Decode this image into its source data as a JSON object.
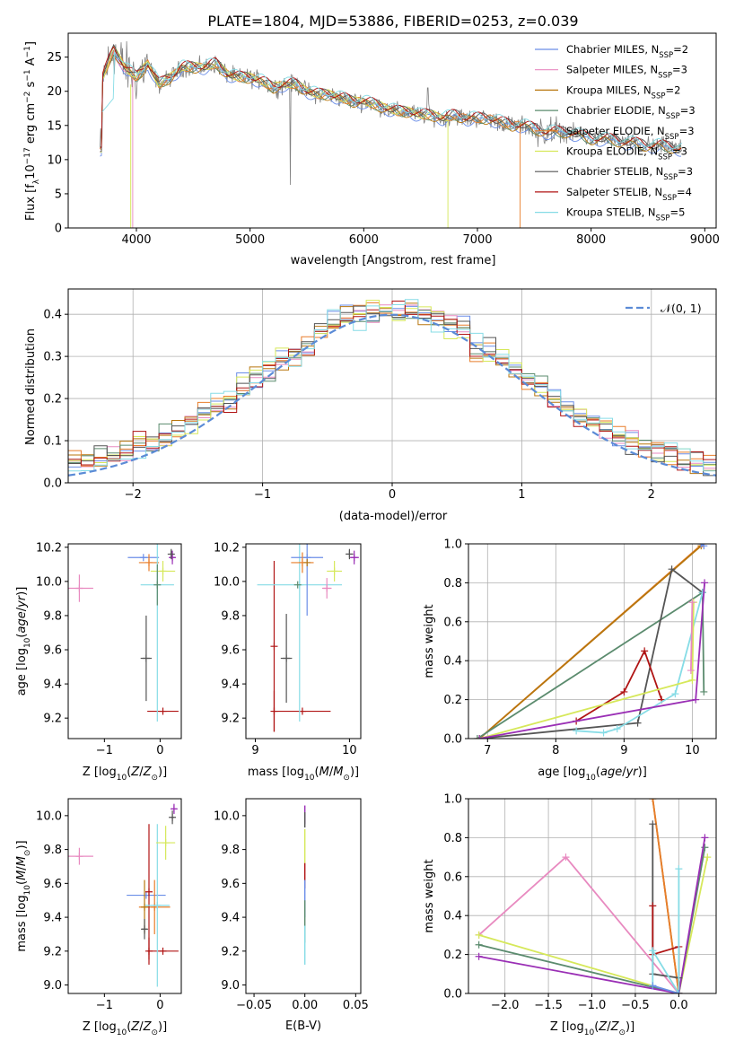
{
  "figure": {
    "title": "PLATE=1804, MJD=53886, FIBERID=0253, z=0.039",
    "colors": {
      "Chabrier MILES": "#6b8ee8",
      "Salpeter MILES": "#e88ac0",
      "Kroupa MILES": "#b8760e",
      "Chabrier ELODIE": "#5b8b6e",
      "Salpeter ELODIE": "#e87d2a",
      "Kroupa ELODIE": "#d6e85a",
      "Chabrier STELIB": "#555555",
      "Salpeter STELIB": "#b01414",
      "Kroupa STELIB": "#86dce6",
      "extra": "#9a2fb5",
      "data": "#808080",
      "gauss": "#5b8bd6"
    }
  },
  "chart_data": [
    {
      "panel": "spectrum",
      "type": "line",
      "xlabel": "wavelength [Angstrom, rest frame]",
      "ylabel_parts": [
        "Flux [f",
        "λ",
        "10",
        "−17",
        " erg cm",
        "−2",
        " s",
        "−1",
        " A",
        "−1",
        "]"
      ],
      "xlim": [
        3400,
        9100
      ],
      "ylim": [
        0,
        28.5
      ],
      "xticks": [
        4000,
        5000,
        6000,
        7000,
        8000,
        9000
      ],
      "yticks": [
        0,
        5,
        10,
        15,
        20,
        25
      ],
      "grid": false,
      "legend_position": "top-right",
      "legend": [
        {
          "name": "Chabrier MILES",
          "sub": "SSP",
          "n": "=2"
        },
        {
          "name": "Salpeter MILES",
          "sub": "SSP",
          "n": "=3"
        },
        {
          "name": "Kroupa MILES",
          "sub": "SSP",
          "n": "=2"
        },
        {
          "name": "Chabrier ELODIE",
          "sub": "SSP",
          "n": "=3"
        },
        {
          "name": "Salpeter ELODIE",
          "sub": "SSP",
          "n": "=3"
        },
        {
          "name": "Kroupa ELODIE",
          "sub": "SSP",
          "n": "=3"
        },
        {
          "name": "Chabrier STELIB",
          "sub": "SSP",
          "n": "=3"
        },
        {
          "name": "Salpeter STELIB",
          "sub": "SSP",
          "n": "=4"
        },
        {
          "name": "Kroupa STELIB",
          "sub": "SSP",
          "n": "=5"
        }
      ],
      "model_envelope": [
        [
          3700,
          22
        ],
        [
          3800,
          26
        ],
        [
          3900,
          23.5
        ],
        [
          4000,
          22
        ],
        [
          4100,
          24
        ],
        [
          4200,
          21
        ],
        [
          4300,
          22
        ],
        [
          4400,
          23.5
        ],
        [
          4500,
          23.5
        ],
        [
          4600,
          23.5
        ],
        [
          4700,
          24
        ],
        [
          4800,
          22.5
        ],
        [
          4900,
          22
        ],
        [
          5000,
          22
        ],
        [
          5100,
          21.5
        ],
        [
          5200,
          20.5
        ],
        [
          5300,
          21
        ],
        [
          5400,
          21
        ],
        [
          5500,
          20
        ],
        [
          5600,
          19.5
        ],
        [
          5700,
          19.5
        ],
        [
          5800,
          19
        ],
        [
          5900,
          18.5
        ],
        [
          6000,
          18.5
        ],
        [
          6100,
          18
        ],
        [
          6200,
          17.5
        ],
        [
          6300,
          17
        ],
        [
          6400,
          17
        ],
        [
          6500,
          16.5
        ],
        [
          6600,
          16.5
        ],
        [
          6700,
          16
        ],
        [
          6800,
          16.5
        ],
        [
          6900,
          16
        ],
        [
          7000,
          16
        ],
        [
          7100,
          16
        ],
        [
          7200,
          15.5
        ],
        [
          7300,
          15
        ],
        [
          7400,
          15
        ],
        [
          7500,
          14.5
        ],
        [
          7600,
          14
        ],
        [
          7700,
          14
        ],
        [
          7800,
          14
        ],
        [
          7900,
          13.5
        ],
        [
          8000,
          13
        ],
        [
          8100,
          13
        ],
        [
          8200,
          12.8
        ],
        [
          8300,
          12.5
        ],
        [
          8400,
          12.3
        ],
        [
          8500,
          12
        ],
        [
          8600,
          12
        ],
        [
          8700,
          11.8
        ],
        [
          8800,
          11.5
        ]
      ],
      "cutoffs": [
        {
          "series": "Salpeter MILES",
          "from": 3960
        },
        {
          "series": "Kroupa ELODIE",
          "from": 3950
        },
        {
          "series": "Kroupa ELODIE",
          "from": 6740
        },
        {
          "series": "Salpeter ELODIE",
          "from": 7370
        }
      ]
    },
    {
      "panel": "residuals",
      "type": "line",
      "xlabel": "(data-model)/error",
      "ylabel": "Normed distribution",
      "xlim": [
        -2.5,
        2.5
      ],
      "ylim": [
        0,
        0.46
      ],
      "xticks": [
        -2,
        -1,
        0,
        1,
        2
      ],
      "yticks": [
        0.0,
        0.1,
        0.2,
        0.3,
        0.4
      ],
      "grid": true,
      "legend_position": "top-right",
      "gauss_label": "𝒩(0, 1)",
      "bin_width": 0.1
    },
    {
      "panel": "Z-age",
      "type": "scatter",
      "xlabel": "Z [log10(Z/Z⊙)]",
      "ylabel": "age [log10(age/yr)]",
      "xlim": [
        -1.65,
        0.38
      ],
      "ylim": [
        9.08,
        10.22
      ],
      "xticks": [
        -1,
        0
      ],
      "yticks": [
        9.2,
        9.4,
        9.6,
        9.8,
        10.0,
        10.2
      ],
      "points": [
        {
          "s": "Salpeter MILES",
          "x": -1.45,
          "y": 9.96,
          "xerr": 0.25,
          "yerr": 0.08
        },
        {
          "s": "Chabrier MILES",
          "x": -0.3,
          "y": 10.14,
          "xerr": 0.28,
          "yerr": 0.0
        },
        {
          "s": "Salpeter ELODIE",
          "x": -0.2,
          "y": 10.11,
          "xerr": 0.18,
          "yerr": 0.05
        },
        {
          "s": "Chabrier STELIB",
          "x": -0.25,
          "y": 9.55,
          "xerr": 0.1,
          "yerr": 0.25
        },
        {
          "s": "Salpeter STELIB",
          "x": 0.05,
          "y": 9.24,
          "xerr": 0.28,
          "yerr": 0.0
        },
        {
          "s": "Kroupa ELODIE",
          "x": 0.05,
          "y": 10.06,
          "xerr": 0.22,
          "yerr": 0.06
        },
        {
          "s": "Kroupa STELIB",
          "x": -0.05,
          "y": 9.98,
          "xerr": 0.3,
          "yerr": 0.8
        },
        {
          "s": "Chabrier ELODIE",
          "x": -0.05,
          "y": 9.98,
          "xerr": 0.0,
          "yerr": 0.12
        },
        {
          "s": "extra",
          "x": 0.22,
          "y": 10.14,
          "xerr": 0.05,
          "yerr": 0.04
        },
        {
          "s": "Chabrier STELIB",
          "x": 0.2,
          "y": 10.16,
          "xerr": 0.03,
          "yerr": 0.03
        }
      ]
    },
    {
      "panel": "mass-age",
      "type": "scatter",
      "xlabel": "mass [log10(M/M⊙)]",
      "ylabel": "",
      "xlim": [
        8.9,
        10.12
      ],
      "ylim": [
        9.08,
        10.22
      ],
      "xticks": [
        9,
        10
      ],
      "yticks": [
        9.2,
        9.4,
        9.6,
        9.8,
        10.0,
        10.2
      ],
      "points": [
        {
          "s": "Salpeter STELIB",
          "x": 9.2,
          "y": 9.24,
          "xerr": 0.0,
          "yerr": 0.12
        },
        {
          "s": "Salpeter STELIB",
          "x": 9.5,
          "y": 9.24,
          "xerr": 0.3,
          "yerr": 0.0
        },
        {
          "s": "Salpeter STELIB",
          "x": 9.2,
          "y": 9.62,
          "xerr": 0.0,
          "yerr": 0.5
        },
        {
          "s": "Kroupa STELIB",
          "x": 9.47,
          "y": 9.98,
          "xerr": 0.45,
          "yerr": 0.8
        },
        {
          "s": "Chabrier STELIB",
          "x": 9.33,
          "y": 9.55,
          "xerr": 0.06,
          "yerr": 0.26
        },
        {
          "s": "Chabrier MILES",
          "x": 9.55,
          "y": 10.14,
          "xerr": 0.17,
          "yerr": 0.34
        },
        {
          "s": "Salpeter ELODIE",
          "x": 9.5,
          "y": 10.11,
          "xerr": 0.12,
          "yerr": 0.06
        },
        {
          "s": "Kroupa MILES",
          "x": 9.55,
          "y": 10.11,
          "xerr": 0.0,
          "yerr": 0.0
        },
        {
          "s": "Salpeter MILES",
          "x": 9.76,
          "y": 9.96,
          "xerr": 0.05,
          "yerr": 0.06
        },
        {
          "s": "Kroupa ELODIE",
          "x": 9.84,
          "y": 10.06,
          "xerr": 0.08,
          "yerr": 0.06
        },
        {
          "s": "Chabrier ELODIE",
          "x": 9.45,
          "y": 9.98,
          "xerr": 0.0,
          "yerr": 0.0
        },
        {
          "s": "extra",
          "x": 10.05,
          "y": 10.14,
          "xerr": 0.05,
          "yerr": 0.04
        },
        {
          "s": "Chabrier STELIB",
          "x": 10.0,
          "y": 10.16,
          "xerr": 0.04,
          "yerr": 0.03
        }
      ]
    },
    {
      "panel": "age-weight",
      "type": "line",
      "xlabel": "age [log10(age/yr)]",
      "ylabel": "mass weight",
      "xlim": [
        6.72,
        10.35
      ],
      "ylim": [
        0,
        1
      ],
      "xticks": [
        7,
        8,
        9,
        10
      ],
      "yticks": [
        0.0,
        0.2,
        0.4,
        0.6,
        0.8,
        1.0
      ],
      "grid": true,
      "series": [
        {
          "s": "Salpeter ELODIE",
          "pts": [
            [
              6.88,
              0.0
            ],
            [
              10.15,
              1.0
            ]
          ]
        },
        {
          "s": "Kroupa MILES",
          "pts": [
            [
              6.88,
              0.0
            ],
            [
              10.13,
              0.99
            ]
          ]
        },
        {
          "s": "Chabrier ELODIE",
          "pts": [
            [
              6.85,
              0.0
            ],
            [
              10.15,
              0.75
            ],
            [
              10.17,
              0.24
            ]
          ]
        },
        {
          "s": "Chabrier STELIB",
          "pts": [
            [
              6.88,
              0.0
            ],
            [
              9.2,
              0.08
            ],
            [
              9.7,
              0.87
            ],
            [
              10.15,
              0.75
            ]
          ]
        },
        {
          "s": "Salpeter STELIB",
          "pts": [
            [
              8.3,
              0.09
            ],
            [
              9.0,
              0.24
            ],
            [
              9.3,
              0.45
            ],
            [
              9.55,
              0.2
            ]
          ]
        },
        {
          "s": "Kroupa STELIB",
          "pts": [
            [
              8.3,
              0.04
            ],
            [
              8.7,
              0.03
            ],
            [
              8.9,
              0.05
            ],
            [
              9.75,
              0.23
            ],
            [
              10.15,
              0.75
            ]
          ]
        },
        {
          "s": "Kroupa ELODIE",
          "pts": [
            [
              6.88,
              0.0
            ],
            [
              10.0,
              0.3
            ],
            [
              10.02,
              0.7
            ]
          ]
        },
        {
          "s": "Salpeter MILES",
          "pts": [
            [
              9.98,
              0.35
            ],
            [
              10.0,
              0.7
            ]
          ]
        },
        {
          "s": "extra",
          "pts": [
            [
              6.88,
              0.0
            ],
            [
              10.05,
              0.2
            ],
            [
              10.18,
              0.8
            ]
          ]
        },
        {
          "s": "Chabrier MILES",
          "pts": [
            [
              10.13,
              1.0
            ],
            [
              10.17,
              0.99
            ]
          ]
        }
      ]
    },
    {
      "panel": "Z-mass",
      "type": "scatter",
      "xlabel": "Z [log10(Z/Z⊙)]",
      "ylabel": "mass [log10(M/M⊙)]",
      "xlim": [
        -1.65,
        0.38
      ],
      "ylim": [
        8.95,
        10.1
      ],
      "xticks": [
        -1,
        0
      ],
      "yticks": [
        9.0,
        9.2,
        9.4,
        9.6,
        9.8,
        10.0
      ],
      "points": [
        {
          "s": "Salpeter MILES",
          "x": -1.45,
          "y": 9.76,
          "xerr": 0.25,
          "yerr": 0.05
        },
        {
          "s": "Chabrier MILES",
          "x": -0.25,
          "y": 9.53,
          "xerr": 0.35,
          "yerr": 0.0
        },
        {
          "s": "Salpeter ELODIE",
          "x": -0.1,
          "y": 9.46,
          "xerr": 0.28,
          "yerr": 0.16
        },
        {
          "s": "Kroupa MILES",
          "x": -0.28,
          "y": 9.46,
          "xerr": 0.0,
          "yerr": 0.16
        },
        {
          "s": "Chabrier STELIB",
          "x": -0.28,
          "y": 9.33,
          "xerr": 0.05,
          "yerr": 0.06
        },
        {
          "s": "Salpeter STELIB",
          "x": -0.2,
          "y": 9.2,
          "xerr": 0.0,
          "yerr": 0.08
        },
        {
          "s": "Salpeter STELIB",
          "x": 0.05,
          "y": 9.2,
          "xerr": 0.28,
          "yerr": 0.0
        },
        {
          "s": "Salpeter STELIB",
          "x": -0.2,
          "y": 9.55,
          "xerr": 0.0,
          "yerr": 0.4
        },
        {
          "s": "Kroupa STELIB",
          "x": -0.05,
          "y": 9.47,
          "xerr": 0.22,
          "yerr": 0.48
        },
        {
          "s": "Kroupa ELODIE",
          "x": 0.1,
          "y": 9.84,
          "xerr": 0.17,
          "yerr": 0.1
        },
        {
          "s": "extra",
          "x": 0.25,
          "y": 10.04,
          "xerr": 0.05,
          "yerr": 0.03
        },
        {
          "s": "Chabrier STELIB",
          "x": 0.22,
          "y": 9.99,
          "xerr": 0.03,
          "yerr": 0.04
        }
      ]
    },
    {
      "panel": "EBV-mass",
      "type": "scatter",
      "xlabel": "E(B-V)",
      "ylabel": "",
      "xlim": [
        -0.058,
        0.055
      ],
      "ylim": [
        8.95,
        10.1
      ],
      "xticks": [
        -0.05,
        0.0,
        0.05
      ],
      "xtick_labels": [
        "−0.05",
        "0.00",
        "0.05"
      ],
      "yticks": [
        9.0,
        9.2,
        9.4,
        9.6,
        9.8,
        10.0
      ],
      "bars": [
        {
          "s": "extra",
          "from": 9.95,
          "to": 10.06
        },
        {
          "s": "Chabrier STELIB",
          "from": 9.93,
          "to": 10.02
        },
        {
          "s": "Kroupa ELODIE",
          "from": 9.72,
          "to": 9.92
        },
        {
          "s": "Salpeter STELIB",
          "from": 9.57,
          "to": 9.72
        },
        {
          "s": "Chabrier MILES",
          "from": 9.4,
          "to": 9.62
        },
        {
          "s": "Chabrier ELODIE",
          "from": 9.25,
          "to": 9.5
        },
        {
          "s": "Kroupa STELIB",
          "from": 9.12,
          "to": 9.35
        }
      ]
    },
    {
      "panel": "Z-weight",
      "type": "line",
      "xlabel": "Z [log10(Z/Z⊙)]",
      "ylabel": "mass weight",
      "xlim": [
        -2.42,
        0.43
      ],
      "ylim": [
        0,
        1
      ],
      "xticks": [
        -2.0,
        -1.5,
        -1.0,
        -0.5,
        0.0
      ],
      "xtick_labels": [
        "−2.0",
        "−1.5",
        "−1.0",
        "−0.5",
        "0.0"
      ],
      "yticks": [
        0.0,
        0.2,
        0.4,
        0.6,
        0.8,
        1.0
      ],
      "grid": true,
      "series": [
        {
          "s": "Salpeter MILES",
          "pts": [
            [
              -2.3,
              0.3
            ],
            [
              -1.3,
              0.7
            ],
            [
              0.0,
              0.0
            ]
          ]
        },
        {
          "s": "Kroupa ELODIE",
          "pts": [
            [
              -2.3,
              0.3
            ],
            [
              0.0,
              0.0
            ],
            [
              0.33,
              0.7
            ]
          ]
        },
        {
          "s": "Chabrier ELODIE",
          "pts": [
            [
              -2.3,
              0.25
            ],
            [
              0.0,
              0.0
            ],
            [
              0.3,
              0.75
            ]
          ]
        },
        {
          "s": "extra",
          "pts": [
            [
              -2.3,
              0.19
            ],
            [
              0.0,
              0.0
            ],
            [
              0.3,
              0.8
            ]
          ]
        },
        {
          "s": "Kroupa MILES",
          "pts": [
            [
              -0.3,
              1.0
            ],
            [
              0.0,
              0.0
            ]
          ]
        },
        {
          "s": "Salpeter ELODIE",
          "pts": [
            [
              -0.3,
              1.0
            ],
            [
              0.0,
              0.0
            ]
          ]
        },
        {
          "s": "Chabrier STELIB",
          "pts": [
            [
              -0.3,
              0.87
            ],
            [
              -0.3,
              0.1
            ],
            [
              0.0,
              0.08
            ],
            [
              0.0,
              0.0
            ]
          ]
        },
        {
          "s": "Salpeter STELIB",
          "pts": [
            [
              -0.3,
              0.45
            ],
            [
              -0.3,
              0.2
            ],
            [
              0.0,
              0.24
            ],
            [
              0.0,
              0.0
            ]
          ]
        },
        {
          "s": "Kroupa STELIB",
          "pts": [
            [
              0.0,
              0.64
            ],
            [
              0.0,
              0.0
            ],
            [
              -0.3,
              0.22
            ],
            [
              -0.3,
              0.04
            ]
          ]
        },
        {
          "s": "Chabrier MILES",
          "pts": [
            [
              -0.3,
              0.04
            ],
            [
              0.0,
              0.0
            ]
          ]
        }
      ]
    }
  ]
}
